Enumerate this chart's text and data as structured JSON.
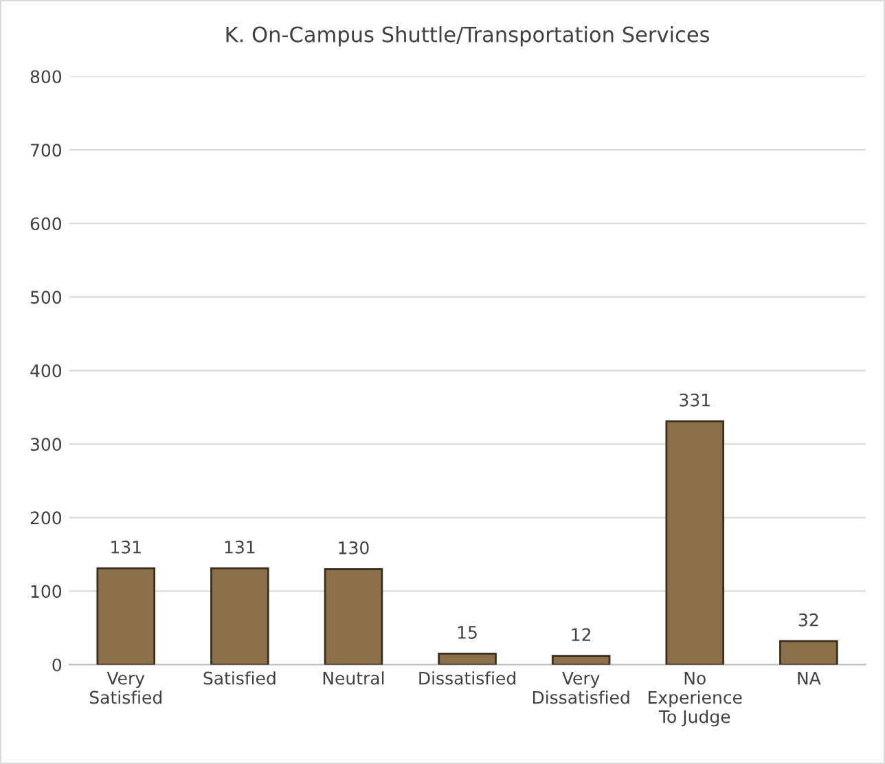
{
  "chart_data": {
    "type": "bar",
    "title": "K. On-Campus Shuttle/Transportation Services",
    "categories": [
      "Very\nSatisfied",
      "Satisfied",
      "Neutral",
      "Dissatisfied",
      "Very\nDissatisfied",
      "No\nExperience\nTo Judge",
      "NA"
    ],
    "values": [
      131,
      131,
      130,
      15,
      12,
      331,
      32
    ],
    "color": "#8b7049",
    "ylim": [
      0,
      800
    ],
    "yticks": [
      0,
      100,
      200,
      300,
      400,
      500,
      600,
      700,
      800
    ],
    "grid": "y",
    "data_labels": true,
    "legend": false
  }
}
